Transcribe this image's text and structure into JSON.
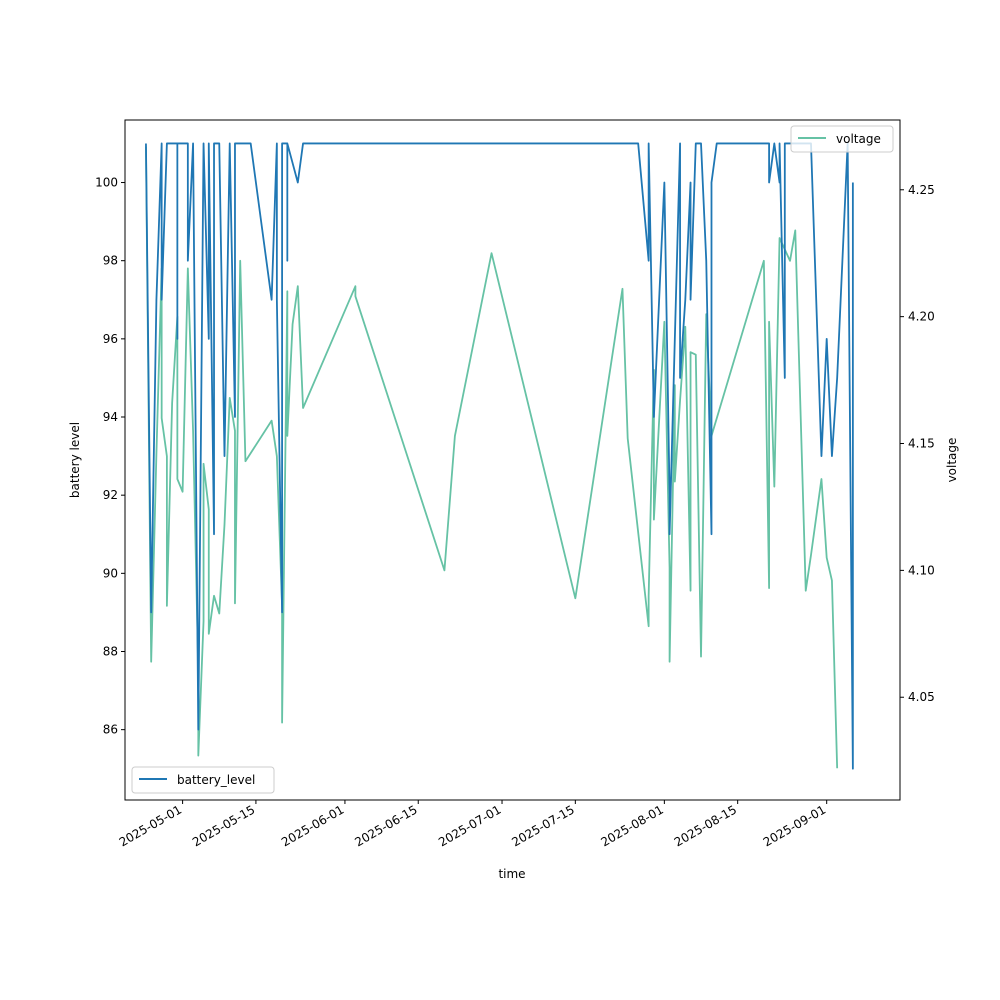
{
  "chart_data": {
    "type": "line",
    "xlabel": "time",
    "ylabel": "battery level",
    "y2label": "voltage",
    "xlim": [
      "2025-04-20",
      "2025-09-15"
    ],
    "ylim": [
      84.2,
      101.6
    ],
    "y2lim": [
      4.0095,
      4.2775
    ],
    "xticks": [
      "2025-05-01",
      "2025-05-15",
      "2025-06-01",
      "2025-06-15",
      "2025-07-01",
      "2025-07-15",
      "2025-08-01",
      "2025-08-15",
      "2025-09-01"
    ],
    "yticks": [
      86,
      88,
      90,
      92,
      94,
      96,
      98,
      100
    ],
    "y2ticks": [
      "4.05",
      "4.10",
      "4.15",
      "4.20",
      "4.25"
    ],
    "grid": false,
    "series": [
      {
        "name": "battery_level",
        "axis": "left",
        "color": "#1f77b4",
        "legend": "lower-left",
        "points": [
          [
            "2025-04-24",
            101
          ],
          [
            "2025-04-25",
            89
          ],
          [
            "2025-04-26",
            97
          ],
          [
            "2025-04-27",
            101
          ],
          [
            "2025-04-27",
            97
          ],
          [
            "2025-04-28",
            101
          ],
          [
            "2025-04-29",
            101
          ],
          [
            "2025-04-30",
            101
          ],
          [
            "2025-04-30",
            96
          ],
          [
            "2025-04-30",
            101
          ],
          [
            "2025-05-01",
            101
          ],
          [
            "2025-05-02",
            101
          ],
          [
            "2025-05-02",
            98
          ],
          [
            "2025-05-03",
            101
          ],
          [
            "2025-05-04",
            86
          ],
          [
            "2025-05-05",
            101
          ],
          [
            "2025-05-06",
            96
          ],
          [
            "2025-05-06",
            101
          ],
          [
            "2025-05-07",
            91
          ],
          [
            "2025-05-07",
            101
          ],
          [
            "2025-05-08",
            101
          ],
          [
            "2025-05-09",
            93
          ],
          [
            "2025-05-10",
            101
          ],
          [
            "2025-05-11",
            94
          ],
          [
            "2025-05-11",
            101
          ],
          [
            "2025-05-12",
            101
          ],
          [
            "2025-05-13",
            101
          ],
          [
            "2025-05-14",
            101
          ],
          [
            "2025-05-18",
            97
          ],
          [
            "2025-05-19",
            101
          ],
          [
            "2025-05-19",
            97
          ],
          [
            "2025-05-20",
            89
          ],
          [
            "2025-05-20",
            101
          ],
          [
            "2025-05-21",
            101
          ],
          [
            "2025-05-21",
            98
          ],
          [
            "2025-05-21",
            101
          ],
          [
            "2025-05-23",
            100
          ],
          [
            "2025-05-24",
            101
          ],
          [
            "2025-07-27",
            101
          ],
          [
            "2025-07-29",
            98
          ],
          [
            "2025-07-29",
            101
          ],
          [
            "2025-07-30",
            94
          ],
          [
            "2025-08-01",
            100
          ],
          [
            "2025-08-02",
            92
          ],
          [
            "2025-08-02",
            91
          ],
          [
            "2025-08-04",
            101
          ],
          [
            "2025-08-04",
            95
          ],
          [
            "2025-08-05",
            97
          ],
          [
            "2025-08-06",
            100
          ],
          [
            "2025-08-06",
            97
          ],
          [
            "2025-08-07",
            101
          ],
          [
            "2025-08-08",
            101
          ],
          [
            "2025-08-09",
            98
          ],
          [
            "2025-08-10",
            91
          ],
          [
            "2025-08-10",
            100
          ],
          [
            "2025-08-11",
            101
          ],
          [
            "2025-08-12",
            101
          ],
          [
            "2025-08-21",
            101
          ],
          [
            "2025-08-21",
            100
          ],
          [
            "2025-08-22",
            101
          ],
          [
            "2025-08-23",
            100
          ],
          [
            "2025-08-23",
            101
          ],
          [
            "2025-08-24",
            95
          ],
          [
            "2025-08-24",
            101
          ],
          [
            "2025-08-25",
            101
          ],
          [
            "2025-08-27",
            101
          ],
          [
            "2025-08-29",
            101
          ],
          [
            "2025-08-31",
            93
          ],
          [
            "2025-09-01",
            96
          ],
          [
            "2025-09-02",
            93
          ],
          [
            "2025-09-03",
            95
          ],
          [
            "2025-09-04",
            98
          ],
          [
            "2025-09-05",
            101
          ],
          [
            "2025-09-06",
            85
          ],
          [
            "2025-09-06",
            100
          ]
        ]
      },
      {
        "name": "voltage",
        "axis": "right",
        "color": "#66c2a5",
        "legend": "upper-right",
        "points": [
          [
            "2025-04-24",
            4.267
          ],
          [
            "2025-04-25",
            4.064
          ],
          [
            "2025-04-26",
            4.146
          ],
          [
            "2025-04-27",
            4.219
          ],
          [
            "2025-04-27",
            4.16
          ],
          [
            "2025-04-28",
            4.145
          ],
          [
            "2025-04-28",
            4.086
          ],
          [
            "2025-04-29",
            4.166
          ],
          [
            "2025-04-30",
            4.2
          ],
          [
            "2025-04-30",
            4.136
          ],
          [
            "2025-05-01",
            4.131
          ],
          [
            "2025-05-02",
            4.219
          ],
          [
            "2025-05-03",
            4.155
          ],
          [
            "2025-05-04",
            4.06
          ],
          [
            "2025-05-04",
            4.027
          ],
          [
            "2025-05-05",
            4.08
          ],
          [
            "2025-05-05",
            4.142
          ],
          [
            "2025-05-06",
            4.124
          ],
          [
            "2025-05-06",
            4.075
          ],
          [
            "2025-05-07",
            4.09
          ],
          [
            "2025-05-08",
            4.083
          ],
          [
            "2025-05-09",
            4.118
          ],
          [
            "2025-05-10",
            4.168
          ],
          [
            "2025-05-11",
            4.155
          ],
          [
            "2025-05-11",
            4.087
          ],
          [
            "2025-05-12",
            4.222
          ],
          [
            "2025-05-13",
            4.143
          ],
          [
            "2025-05-18",
            4.159
          ],
          [
            "2025-05-19",
            4.145
          ],
          [
            "2025-05-20",
            4.086
          ],
          [
            "2025-05-20",
            4.04
          ],
          [
            "2025-05-21",
            4.21
          ],
          [
            "2025-05-21",
            4.153
          ],
          [
            "2025-05-22",
            4.197
          ],
          [
            "2025-05-23",
            4.212
          ],
          [
            "2025-05-24",
            4.164
          ],
          [
            "2025-06-03",
            4.212
          ],
          [
            "2025-06-03",
            4.208
          ],
          [
            "2025-06-20",
            4.1
          ],
          [
            "2025-06-22",
            4.153
          ],
          [
            "2025-06-29",
            4.225
          ],
          [
            "2025-07-15",
            4.089
          ],
          [
            "2025-07-24",
            4.211
          ],
          [
            "2025-07-25",
            4.152
          ],
          [
            "2025-07-29",
            4.078
          ],
          [
            "2025-07-29",
            4.09
          ],
          [
            "2025-07-30",
            4.179
          ],
          [
            "2025-07-30",
            4.12
          ],
          [
            "2025-08-01",
            4.198
          ],
          [
            "2025-08-02",
            4.101
          ],
          [
            "2025-08-02",
            4.064
          ],
          [
            "2025-08-03",
            4.173
          ],
          [
            "2025-08-03",
            4.135
          ],
          [
            "2025-08-04",
            4.167
          ],
          [
            "2025-08-05",
            4.196
          ],
          [
            "2025-08-06",
            4.092
          ],
          [
            "2025-08-06",
            4.186
          ],
          [
            "2025-08-07",
            4.185
          ],
          [
            "2025-08-08",
            4.066
          ],
          [
            "2025-08-09",
            4.201
          ],
          [
            "2025-08-10",
            4.153
          ],
          [
            "2025-08-20",
            4.222
          ],
          [
            "2025-08-21",
            4.093
          ],
          [
            "2025-08-21",
            4.198
          ],
          [
            "2025-08-22",
            4.133
          ],
          [
            "2025-08-23",
            4.231
          ],
          [
            "2025-08-25",
            4.222
          ],
          [
            "2025-08-26",
            4.234
          ],
          [
            "2025-08-28",
            4.092
          ],
          [
            "2025-08-29",
            4.106
          ],
          [
            "2025-08-31",
            4.136
          ],
          [
            "2025-09-01",
            4.105
          ],
          [
            "2025-09-02",
            4.096
          ],
          [
            "2025-09-03",
            4.022
          ]
        ]
      }
    ]
  }
}
